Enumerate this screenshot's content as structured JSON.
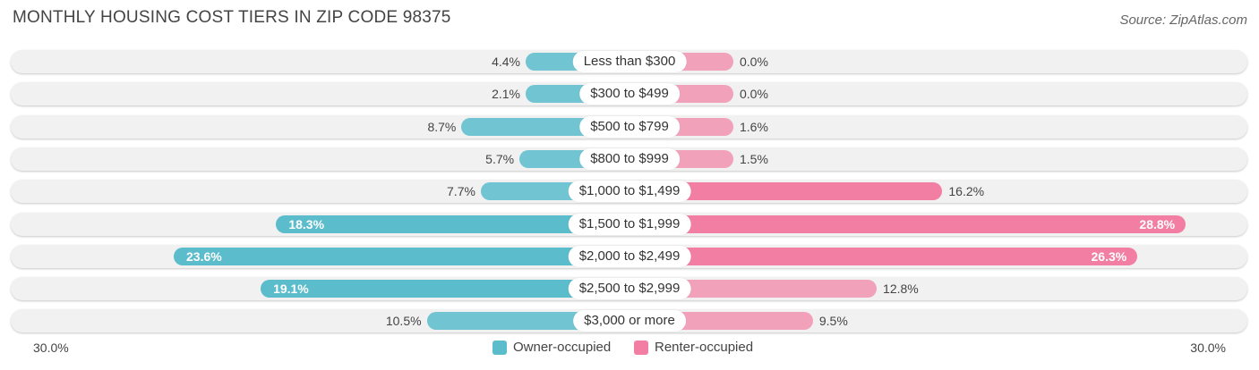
{
  "chart_data": {
    "type": "bar",
    "orientation": "horizontal-diverging",
    "title": "MONTHLY HOUSING COST TIERS IN ZIP CODE 98375",
    "source": "Source: ZipAtlas.com",
    "categories": [
      "Less than $300",
      "$300 to $499",
      "$500 to $799",
      "$800 to $999",
      "$1,000 to $1,499",
      "$1,500 to $1,999",
      "$2,000 to $2,499",
      "$2,500 to $2,999",
      "$3,000 or more"
    ],
    "series": [
      {
        "name": "Owner-occupied",
        "color": "#5bbccb",
        "values": [
          4.4,
          2.1,
          8.7,
          5.7,
          7.7,
          18.3,
          23.6,
          19.1,
          10.5
        ],
        "labels": [
          "4.4%",
          "2.1%",
          "8.7%",
          "5.7%",
          "7.7%",
          "18.3%",
          "23.6%",
          "19.1%",
          "10.5%"
        ]
      },
      {
        "name": "Renter-occupied",
        "color": "#f27fa3",
        "values": [
          0.0,
          0.0,
          1.6,
          1.5,
          16.2,
          28.8,
          26.3,
          12.8,
          9.5
        ],
        "labels": [
          "0.0%",
          "0.0%",
          "1.6%",
          "1.5%",
          "16.2%",
          "28.8%",
          "26.3%",
          "12.8%",
          "9.5%"
        ]
      }
    ],
    "xlim": [
      -30,
      30
    ],
    "axis_labels": {
      "left": "30.0%",
      "right": "30.0%"
    },
    "legend_position": "bottom-center"
  }
}
